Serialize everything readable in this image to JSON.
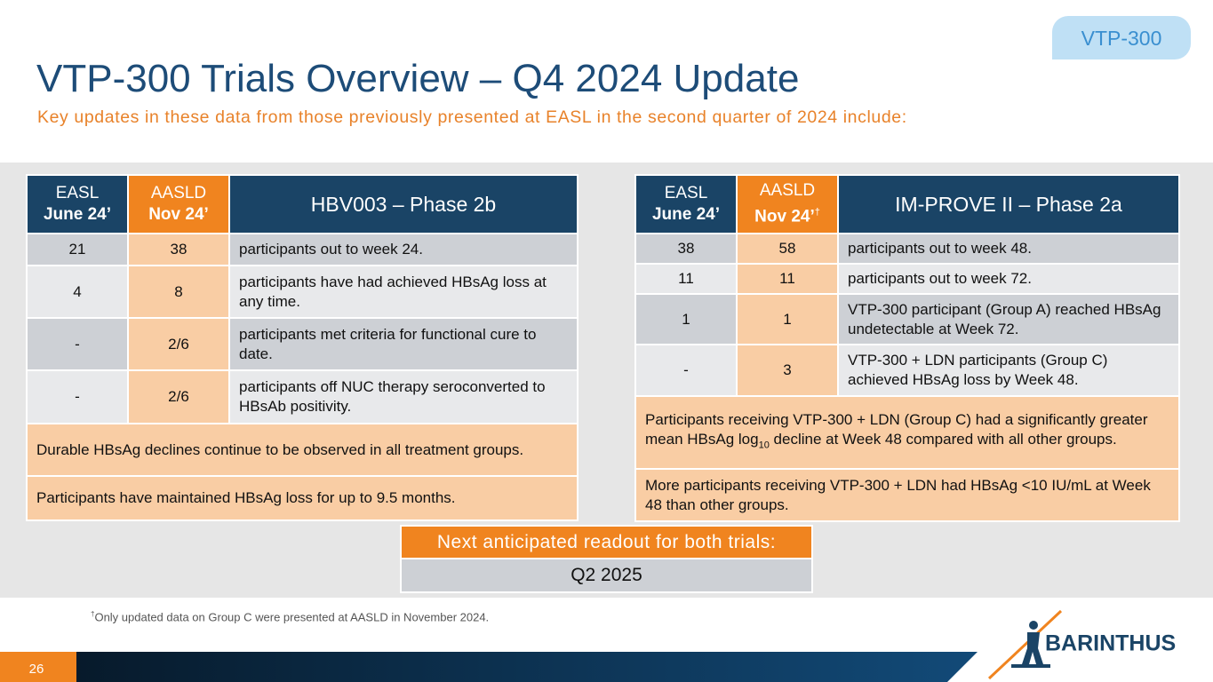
{
  "tag": "VTP-300",
  "title": "VTP-300 Trials Overview – Q4 2024 Update",
  "subtitle": "Key updates in these data from those previously presented at EASL in the second quarter of 2024 include:",
  "tables": [
    {
      "header": {
        "col1": [
          "EASL",
          "June 24’"
        ],
        "col2": [
          "AASLD",
          "Nov 24’"
        ],
        "title": "HBV003 – Phase 2b"
      },
      "rows": [
        [
          "21",
          "38",
          "participants out to week 24."
        ],
        [
          "4",
          "8",
          "participants have had achieved HBsAg loss at any time."
        ],
        [
          "-",
          "2/6",
          "participants met criteria for functional cure to date."
        ],
        [
          "-",
          "2/6",
          "participants off NUC therapy seroconverted to HBsAb positivity."
        ]
      ],
      "notes": [
        [
          "Durable HBsAg declines continue to be observed in all treatment groups."
        ],
        [
          "Participants have maintained HBsAg loss for up to 9.5 months."
        ]
      ]
    },
    {
      "header": {
        "col1": [
          "EASL",
          "June 24’"
        ],
        "col2": [
          "AASLD",
          "Nov 24’",
          "†"
        ],
        "title": "IM-PROVE II – Phase 2a"
      },
      "rows": [
        [
          "38",
          "58",
          "participants out to week 48."
        ],
        [
          "11",
          "11",
          "participants out to week 72."
        ],
        [
          "1",
          "1",
          "VTP-300 participant (Group A) reached HBsAg undetectable at Week 72."
        ],
        [
          "-",
          "3",
          "VTP-300 + LDN participants (Group C) achieved HBsAg loss by Week 48."
        ]
      ],
      "notes": [
        [
          "Participants receiving VTP-300 + LDN (Group C) had a significantly greater mean HBsAg log",
          "10",
          " decline at Week 48 compared with all other groups."
        ],
        [
          "More participants receiving VTP-300 + LDN had HBsAg <10 IU/mL at Week 48 than other groups."
        ]
      ]
    }
  ],
  "next": {
    "label": "Next anticipated readout for both trials:",
    "value": "Q2 2025"
  },
  "footnote": {
    "mark": "†",
    "text": "Only updated data on Group C were presented at AASLD in November 2024."
  },
  "page_number": "26",
  "logo": "BARINTHUS"
}
